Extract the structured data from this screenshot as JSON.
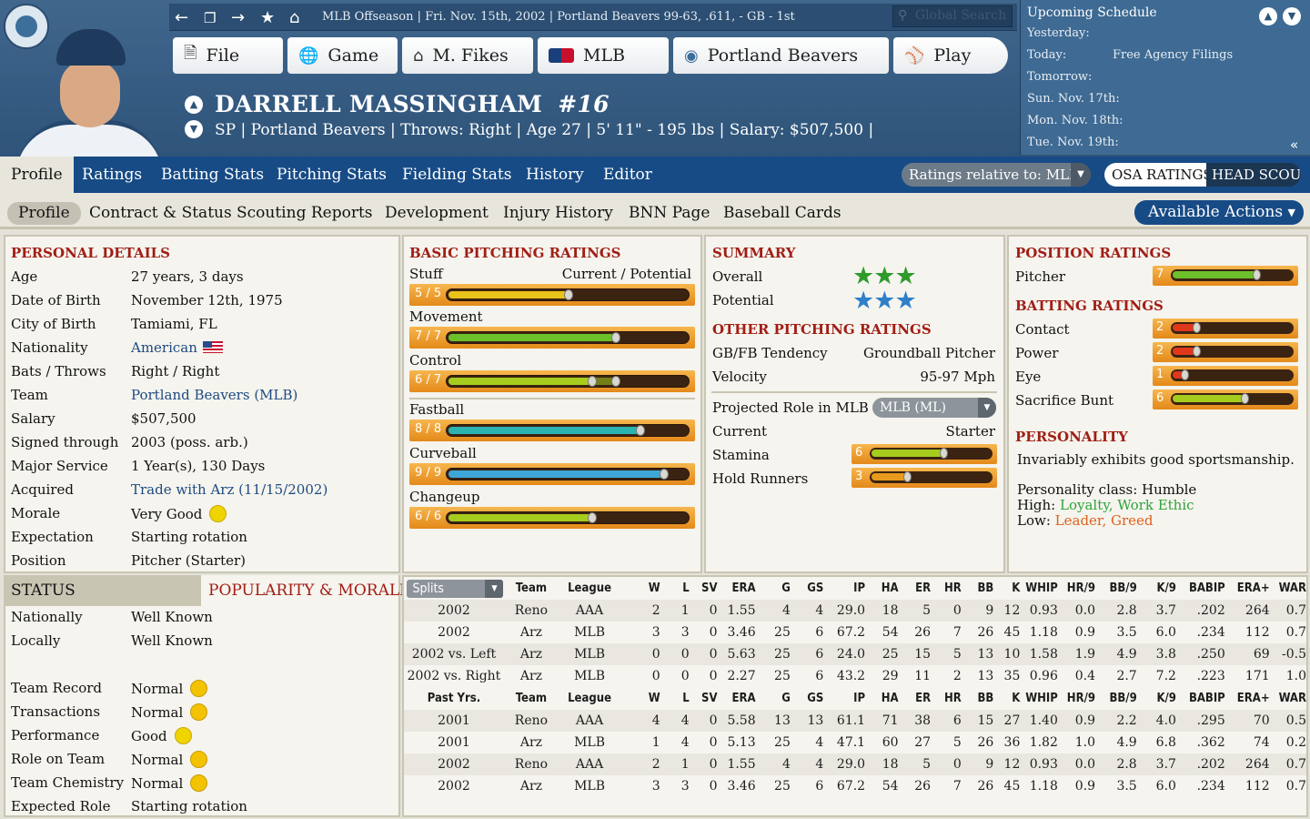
{
  "topbar": {
    "game_info": "MLB Offseason | Fri. Nov. 15th, 2002 | Portland Beavers 99-63, .611, - GB - 1st",
    "search_placeholder": "Global Search"
  },
  "main_menu": {
    "file": "File",
    "game": "Game",
    "manager": "M. Fikes",
    "mlb": "MLB",
    "team": "Portland Beavers",
    "play": "Play"
  },
  "player": {
    "name": "DARRELL MASSINGHAM",
    "number": "#16",
    "info": "SP | Portland Beavers | Throws: Right | Age 27 | 5' 11\" - 195 lbs | Salary: $507,500 |"
  },
  "schedule": {
    "title": "Upcoming Schedule",
    "rows": [
      {
        "day": "Yesterday:",
        "event": ""
      },
      {
        "day": "Today:",
        "event": "Free Agency Filings"
      },
      {
        "day": "Tomorrow:",
        "event": ""
      },
      {
        "day": "Sun. Nov. 17th:",
        "event": ""
      },
      {
        "day": "Mon. Nov. 18th:",
        "event": ""
      },
      {
        "day": "Tue. Nov. 19th:",
        "event": ""
      }
    ]
  },
  "tabs": {
    "primary": [
      "Profile",
      "Ratings",
      "Batting Stats",
      "Pitching Stats",
      "Fielding Stats",
      "History",
      "Editor"
    ],
    "relative": "Ratings relative to: MLB",
    "osa": "OSA RATINGS",
    "head_scout": "HEAD SCOUT",
    "secondary": [
      "Profile",
      "Contract & Status",
      "Scouting Reports",
      "Development",
      "Injury History",
      "BNN Page",
      "Baseball Cards"
    ],
    "available_actions": "Available Actions"
  },
  "personal": {
    "title": "PERSONAL DETAILS",
    "rows": [
      {
        "label": "Age",
        "value": "27 years, 3 days"
      },
      {
        "label": "Date of Birth",
        "value": "November 12th, 1975"
      },
      {
        "label": "City of Birth",
        "value": "Tamiami, FL"
      },
      {
        "label": "Nationality",
        "value": "American"
      },
      {
        "label": "Bats / Throws",
        "value": "Right / Right"
      },
      {
        "label": "Team",
        "value": "Portland Beavers (MLB)"
      },
      {
        "label": "Salary",
        "value": "$507,500"
      },
      {
        "label": "Signed through",
        "value": "2003 (poss. arb.)"
      },
      {
        "label": "Major Service",
        "value": "1 Year(s), 130 Days"
      },
      {
        "label": "Acquired",
        "value": "Trade with Arz (11/15/2002)"
      },
      {
        "label": "Morale",
        "value": "Very Good"
      },
      {
        "label": "Expectation",
        "value": "Starting rotation"
      },
      {
        "label": "Position",
        "value": "Pitcher (Starter)"
      }
    ]
  },
  "pitching": {
    "title": "BASIC PITCHING RATINGS",
    "cur_pot_label": "Current / Potential",
    "ratings": [
      {
        "name": "Stuff",
        "display": "5 / 5",
        "current": 5,
        "potential": 5,
        "color": "#e9c21a"
      },
      {
        "name": "Movement",
        "display": "7 / 7",
        "current": 7,
        "potential": 7,
        "color": "#6cc12a"
      },
      {
        "name": "Control",
        "display": "6 / 7",
        "current": 6,
        "potential": 7,
        "color": "#a6cc1e"
      },
      {
        "name": "Fastball",
        "display": "8 / 8",
        "current": 8,
        "potential": 8,
        "color": "#2bb3b0"
      },
      {
        "name": "Curveball",
        "display": "9 / 9",
        "current": 9,
        "potential": 9,
        "color": "#3da7d8"
      },
      {
        "name": "Changeup",
        "display": "6 / 6",
        "current": 6,
        "potential": 6,
        "color": "#a6cc1e"
      }
    ]
  },
  "summary": {
    "title": "SUMMARY",
    "overall_label": "Overall",
    "overall_stars": 3,
    "potential_label": "Potential",
    "potential_stars": 3,
    "other_title": "OTHER PITCHING RATINGS",
    "gbfb_label": "GB/FB Tendency",
    "gbfb_value": "Groundball Pitcher",
    "velocity_label": "Velocity",
    "velocity_value": "95-97 Mph",
    "role_label": "Projected Role in MLB",
    "role_select": "MLB (ML)",
    "current_label": "Current",
    "current_value": "Starter",
    "stamina_label": "Stamina",
    "stamina": 6,
    "hold_label": "Hold Runners",
    "hold": 3
  },
  "position": {
    "title": "POSITION RATINGS",
    "pitcher_label": "Pitcher",
    "pitcher": 7,
    "batting_title": "BATTING RATINGS",
    "batting": [
      {
        "name": "Contact",
        "value": 2
      },
      {
        "name": "Power",
        "value": 2
      },
      {
        "name": "Eye",
        "value": 1
      },
      {
        "name": "Sacrifice Bunt",
        "value": 6
      }
    ],
    "personality_title": "PERSONALITY",
    "personality_desc": "Invariably exhibits good sportsmanship.",
    "class_text": "Personality class: Humble",
    "high_label": "High:",
    "high_traits": "Loyalty, Work Ethic",
    "low_label": "Low:",
    "low_traits": "Leader, Greed"
  },
  "status": {
    "tab_status": "STATUS",
    "tab_popularity": "POPULARITY & MORALE",
    "rows": [
      {
        "label": "Nationally",
        "value": "Well Known"
      },
      {
        "label": "Locally",
        "value": "Well Known"
      },
      {
        "label": "Team Record",
        "value": "Normal"
      },
      {
        "label": "Transactions",
        "value": "Normal"
      },
      {
        "label": "Performance",
        "value": "Good"
      },
      {
        "label": "Role on Team",
        "value": "Normal"
      },
      {
        "label": "Team Chemistry",
        "value": "Normal"
      },
      {
        "label": "Expected Role",
        "value": "Starting rotation"
      }
    ]
  },
  "stats": {
    "splits_label": "Splits",
    "columns": [
      "Team",
      "League",
      "W",
      "L",
      "SV",
      "ERA",
      "G",
      "GS",
      "IP",
      "HA",
      "ER",
      "HR",
      "BB",
      "K",
      "WHIP",
      "HR/9",
      "BB/9",
      "K/9",
      "BABIP",
      "ERA+",
      "WAR"
    ],
    "split_rows": [
      [
        "2002",
        "Reno",
        "AAA",
        "2",
        "1",
        "0",
        "1.55",
        "4",
        "4",
        "29.0",
        "18",
        "5",
        "0",
        "9",
        "12",
        "0.93",
        "0.0",
        "2.8",
        "3.7",
        ".202",
        "264",
        "0.7"
      ],
      [
        "2002",
        "Arz",
        "MLB",
        "3",
        "3",
        "0",
        "3.46",
        "25",
        "6",
        "67.2",
        "54",
        "26",
        "7",
        "26",
        "45",
        "1.18",
        "0.9",
        "3.5",
        "6.0",
        ".234",
        "112",
        "0.7"
      ],
      [
        "2002 vs. Left",
        "Arz",
        "MLB",
        "0",
        "0",
        "0",
        "5.63",
        "25",
        "6",
        "24.0",
        "25",
        "15",
        "5",
        "13",
        "10",
        "1.58",
        "1.9",
        "4.9",
        "3.8",
        ".250",
        "69",
        "-0.5"
      ],
      [
        "2002 vs. Right",
        "Arz",
        "MLB",
        "0",
        "0",
        "0",
        "2.27",
        "25",
        "6",
        "43.2",
        "29",
        "11",
        "2",
        "13",
        "35",
        "0.96",
        "0.4",
        "2.7",
        "7.2",
        ".223",
        "171",
        "1.0"
      ]
    ],
    "past_label": "Past Yrs.",
    "past_rows": [
      [
        "2001",
        "Reno",
        "AAA",
        "4",
        "4",
        "0",
        "5.58",
        "13",
        "13",
        "61.1",
        "71",
        "38",
        "6",
        "15",
        "27",
        "1.40",
        "0.9",
        "2.2",
        "4.0",
        ".295",
        "70",
        "0.5"
      ],
      [
        "2001",
        "Arz",
        "MLB",
        "1",
        "4",
        "0",
        "5.13",
        "25",
        "4",
        "47.1",
        "60",
        "27",
        "5",
        "26",
        "36",
        "1.82",
        "1.0",
        "4.9",
        "6.8",
        ".362",
        "74",
        "0.2"
      ],
      [
        "2002",
        "Reno",
        "AAA",
        "2",
        "1",
        "0",
        "1.55",
        "4",
        "4",
        "29.0",
        "18",
        "5",
        "0",
        "9",
        "12",
        "0.93",
        "0.0",
        "2.8",
        "3.7",
        ".202",
        "264",
        "0.7"
      ],
      [
        "2002",
        "Arz",
        "MLB",
        "3",
        "3",
        "0",
        "3.46",
        "25",
        "6",
        "67.2",
        "54",
        "26",
        "7",
        "26",
        "45",
        "1.18",
        "0.9",
        "3.5",
        "6.0",
        ".234",
        "112",
        "0.7"
      ]
    ]
  }
}
